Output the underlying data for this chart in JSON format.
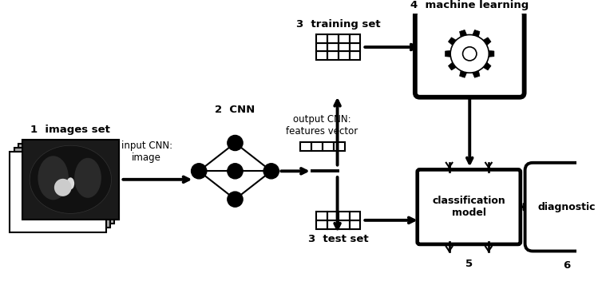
{
  "fig_width": 7.49,
  "fig_height": 3.82,
  "bg_color": "#ffffff",
  "text_color": "#000000",
  "labels": {
    "images_set": "1  images set",
    "cnn": "2  CNN",
    "input_cnn": "input CNN:\nimage",
    "output_cnn": "output CNN:\nfeatures vector",
    "training_set_label": "3  training set",
    "machine_learning_label": "4  machine learning",
    "test_set_label": "3  test set",
    "class_model_label": "5",
    "diagnostic_label": "6",
    "classification_model": "classification\nmodel",
    "diagnostic": "diagnostic"
  },
  "font_size_main": 9.5,
  "font_size_small": 8.5,
  "lw": 1.5,
  "lw_thick": 2.8
}
